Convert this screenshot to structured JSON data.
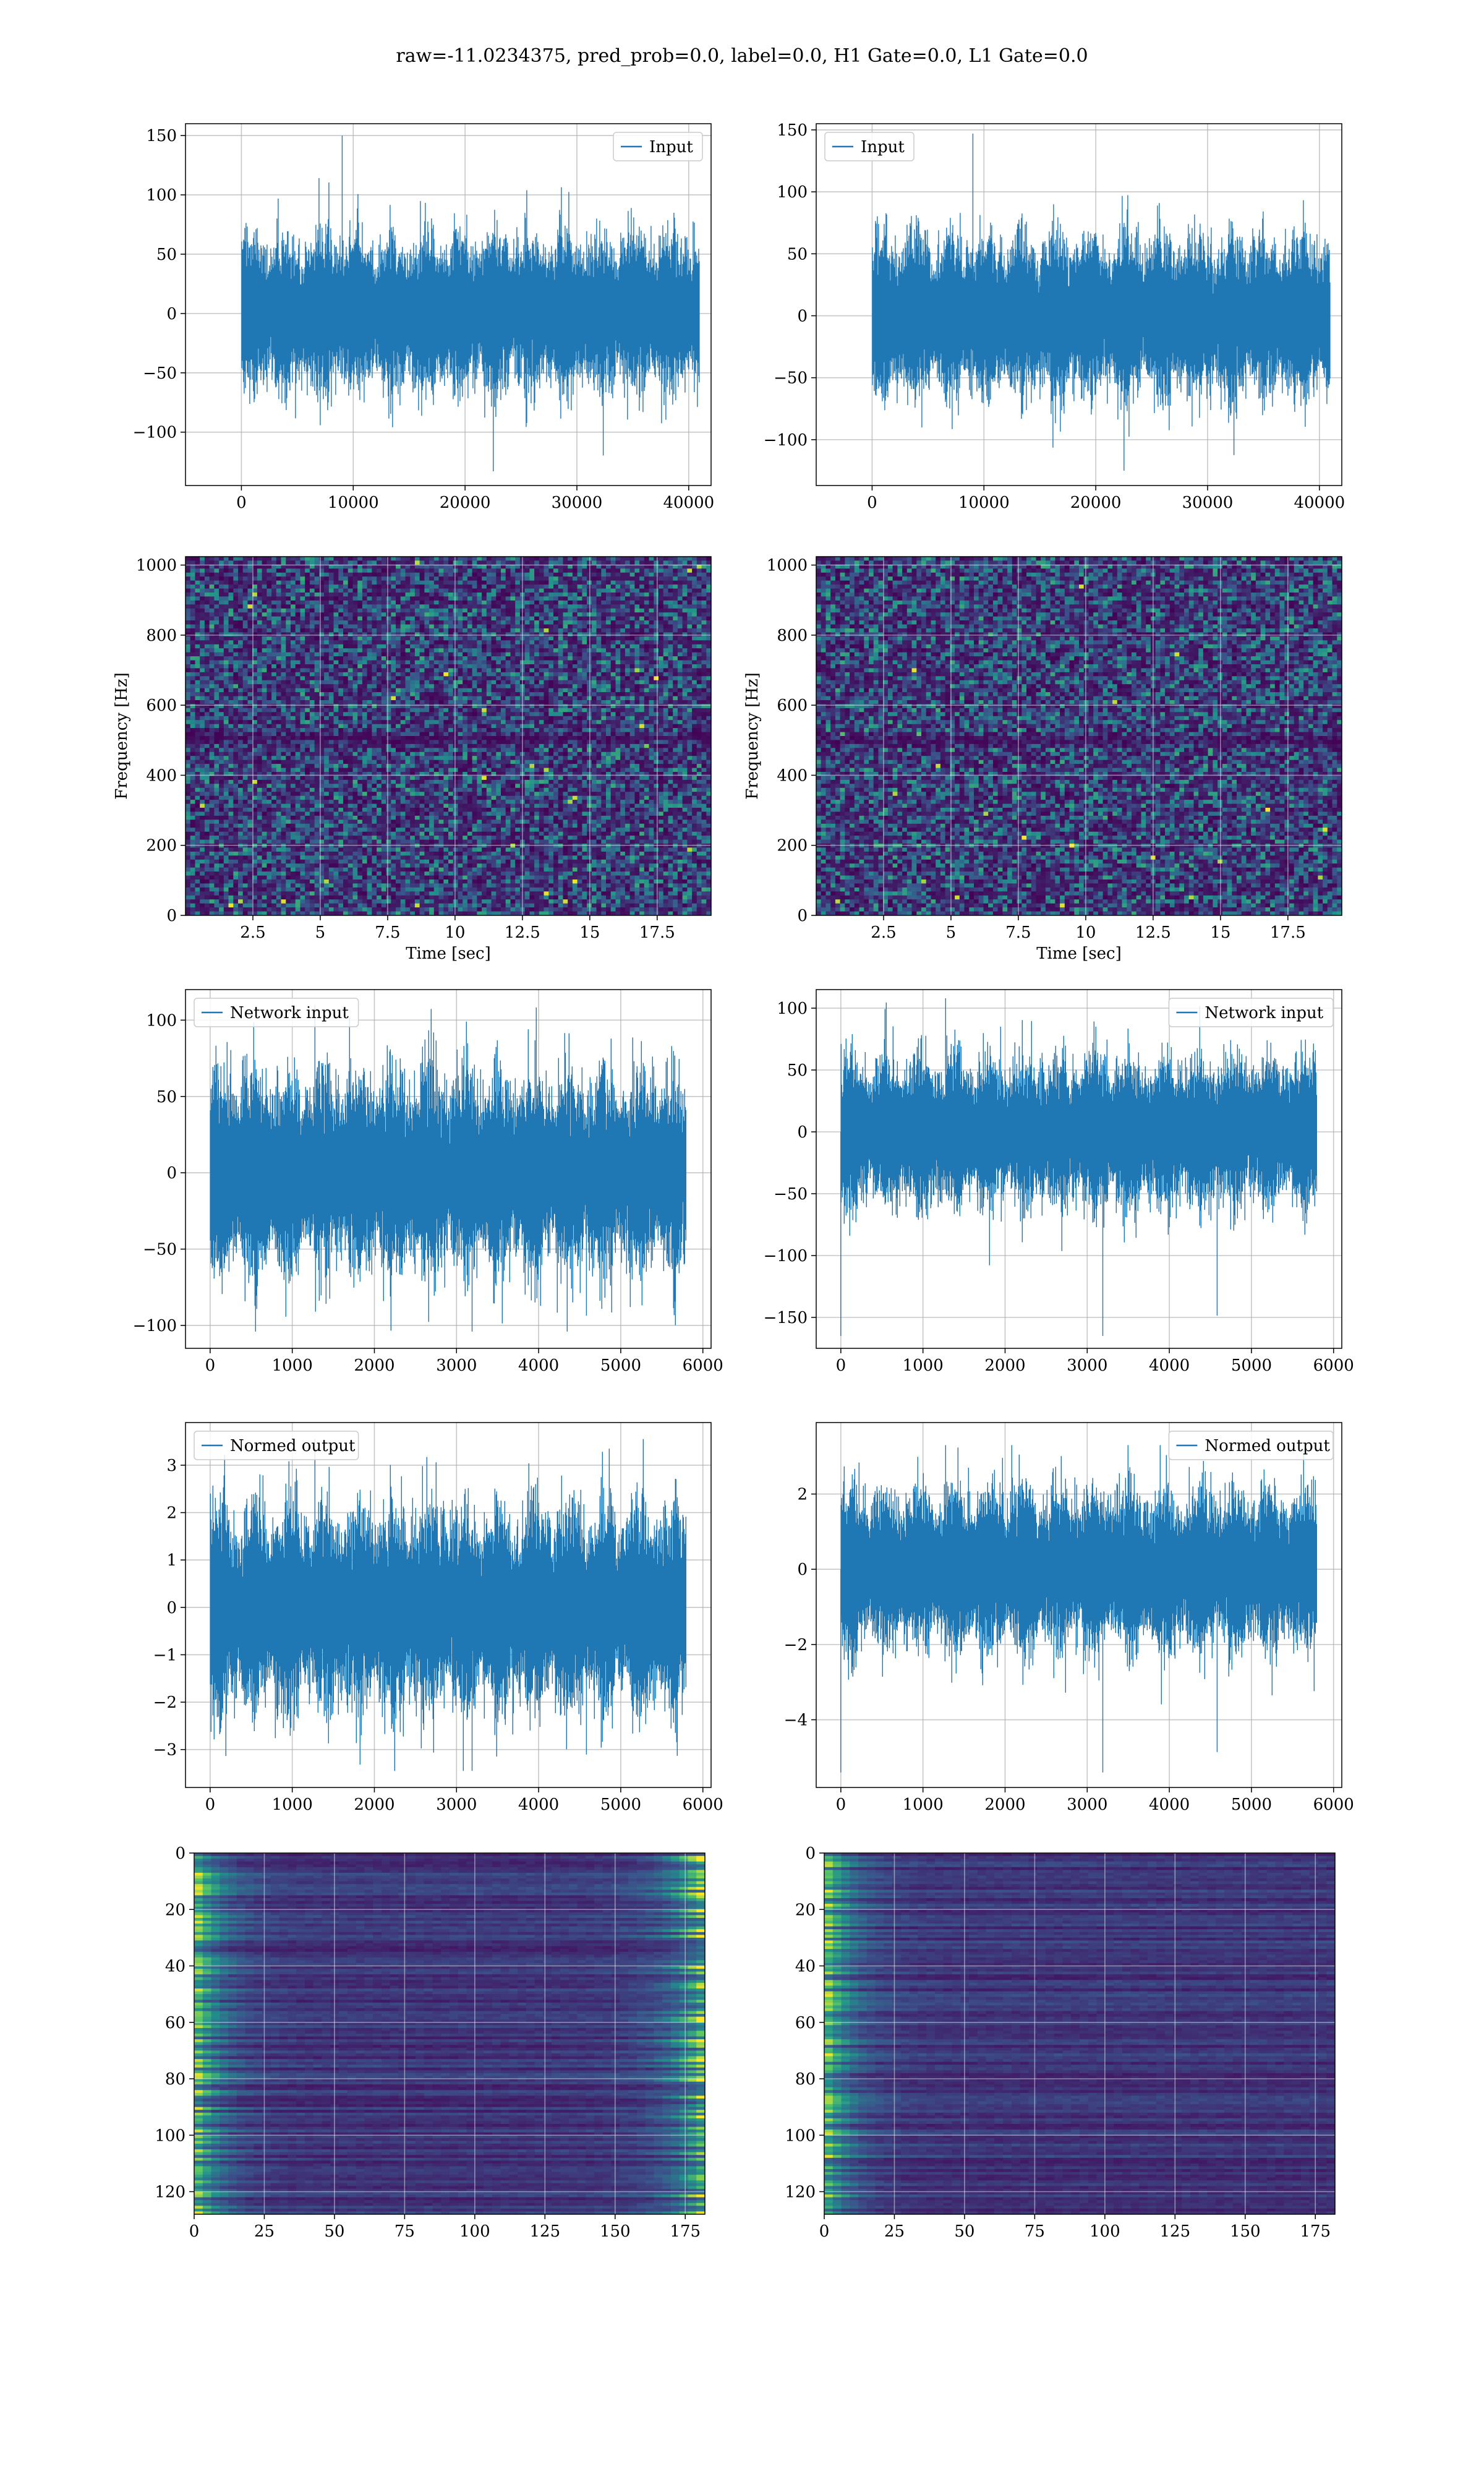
{
  "figure": {
    "suptitle": "raw=-11.0234375, pred_prob=0.0, label=0.0, H1 Gate=0.0, L1 Gate=0.0"
  },
  "colors": {
    "line": "#1f77b4",
    "viridis_dark": "#440154",
    "viridis_mid": "#21918c",
    "viridis_bright": "#fde725",
    "grid": "#b0b0b0"
  },
  "chart_data": [
    {
      "id": "input-h1",
      "type": "line",
      "panel": "row1-left",
      "legend": "Input",
      "legend_loc": "upper right",
      "xlim": [
        -5000,
        42000
      ],
      "ylim": [
        -145,
        160
      ],
      "xticks": [
        0,
        10000,
        20000,
        30000,
        40000
      ],
      "yticks": [
        -100,
        -50,
        0,
        50,
        100,
        150
      ],
      "signal": {
        "n": 40960,
        "std": 24,
        "mean": 0,
        "max": 150,
        "min": -133,
        "seed": 11
      },
      "grid": true
    },
    {
      "id": "input-l1",
      "type": "line",
      "panel": "row1-right",
      "legend": "Input",
      "legend_loc": "upper left",
      "xlim": [
        -5000,
        42000
      ],
      "ylim": [
        -137,
        155
      ],
      "xticks": [
        0,
        10000,
        20000,
        30000,
        40000
      ],
      "yticks": [
        -100,
        -50,
        0,
        50,
        100,
        150
      ],
      "signal": {
        "n": 40960,
        "std": 24,
        "mean": 0,
        "max": 147,
        "min": -125,
        "seed": 23
      },
      "grid": true
    },
    {
      "id": "spec-h1",
      "type": "heatmap",
      "panel": "row2-left",
      "xlabel": "Time [sec]",
      "ylabel": "Frequency [Hz]",
      "xlim": [
        0,
        19.5
      ],
      "ylim": [
        0,
        1024
      ],
      "xticks": [
        2.5,
        5.0,
        7.5,
        10.0,
        12.5,
        15.0,
        17.5
      ],
      "yticks": [
        0,
        200,
        400,
        600,
        800,
        1000
      ],
      "colormap": "viridis",
      "grid": true,
      "dark_bands_hz": [
        512
      ],
      "seed": 31
    },
    {
      "id": "spec-l1",
      "type": "heatmap",
      "panel": "row2-right",
      "xlabel": "Time [sec]",
      "ylabel": "Frequency [Hz]",
      "xlim": [
        0,
        19.5
      ],
      "ylim": [
        0,
        1024
      ],
      "xticks": [
        2.5,
        5.0,
        7.5,
        10.0,
        12.5,
        15.0,
        17.5
      ],
      "yticks": [
        0,
        200,
        400,
        600,
        800,
        1000
      ],
      "colormap": "viridis",
      "grid": true,
      "dark_bands_hz": [
        505
      ],
      "seed": 47
    },
    {
      "id": "network-input-h1",
      "type": "line",
      "panel": "row3-left",
      "legend": "Network input",
      "legend_loc": "upper left",
      "xlim": [
        -300,
        6100
      ],
      "ylim": [
        -115,
        120
      ],
      "xticks": [
        0,
        1000,
        2000,
        3000,
        4000,
        5000,
        6000
      ],
      "yticks": [
        -100,
        -50,
        0,
        50,
        100
      ],
      "signal": {
        "n": 5800,
        "std": 24,
        "mean": 0,
        "max": 110,
        "min": -104,
        "seed": 53
      },
      "grid": true
    },
    {
      "id": "network-input-l1",
      "type": "line",
      "panel": "row3-right",
      "legend": "Network input",
      "legend_loc": "upper right",
      "xlim": [
        -300,
        6100
      ],
      "ylim": [
        -175,
        115
      ],
      "xticks": [
        0,
        1000,
        2000,
        3000,
        4000,
        5000,
        6000
      ],
      "yticks": [
        -150,
        -100,
        -50,
        0,
        50,
        100
      ],
      "signal": {
        "n": 5800,
        "std": 22,
        "mean": 0,
        "max": 108,
        "min": -165,
        "seed": 61
      },
      "grid": true
    },
    {
      "id": "normed-output-h1",
      "type": "line",
      "panel": "row4-left",
      "legend": "Normed output",
      "legend_loc": "upper left",
      "xlim": [
        -300,
        6100
      ],
      "ylim": [
        -3.8,
        3.9
      ],
      "xticks": [
        0,
        1000,
        2000,
        3000,
        4000,
        5000,
        6000
      ],
      "yticks": [
        -3,
        -2,
        -1,
        0,
        1,
        2,
        3
      ],
      "signal": {
        "n": 5800,
        "std": 0.78,
        "mean": 0,
        "max": 3.55,
        "min": -3.45,
        "seed": 71
      },
      "grid": true
    },
    {
      "id": "normed-output-l1",
      "type": "line",
      "panel": "row4-right",
      "legend": "Normed output",
      "legend_loc": "upper right",
      "xlim": [
        -300,
        6100
      ],
      "ylim": [
        -5.8,
        3.9
      ],
      "xticks": [
        0,
        1000,
        2000,
        3000,
        4000,
        5000,
        6000
      ],
      "yticks": [
        -4,
        -2,
        0,
        2
      ],
      "signal": {
        "n": 5800,
        "std": 0.78,
        "mean": 0,
        "max": 3.3,
        "min": -5.4,
        "seed": 83
      },
      "grid": true
    },
    {
      "id": "feature-map-h1",
      "type": "heatmap",
      "panel": "row5-left",
      "xlim": [
        0,
        182
      ],
      "ylim": [
        128,
        0
      ],
      "xticks": [
        0,
        25,
        50,
        75,
        100,
        125,
        150,
        175
      ],
      "yticks": [
        0,
        20,
        40,
        60,
        80,
        100,
        120
      ],
      "colormap": "viridis",
      "grid": true,
      "bright_edges": "both",
      "seed": 97
    },
    {
      "id": "feature-map-l1",
      "type": "heatmap",
      "panel": "row5-right",
      "xlim": [
        0,
        182
      ],
      "ylim": [
        128,
        0
      ],
      "xticks": [
        0,
        25,
        50,
        75,
        100,
        125,
        150,
        175
      ],
      "yticks": [
        0,
        20,
        40,
        60,
        80,
        100,
        120
      ],
      "colormap": "viridis",
      "grid": true,
      "bright_edges": "left",
      "seed": 101
    }
  ]
}
